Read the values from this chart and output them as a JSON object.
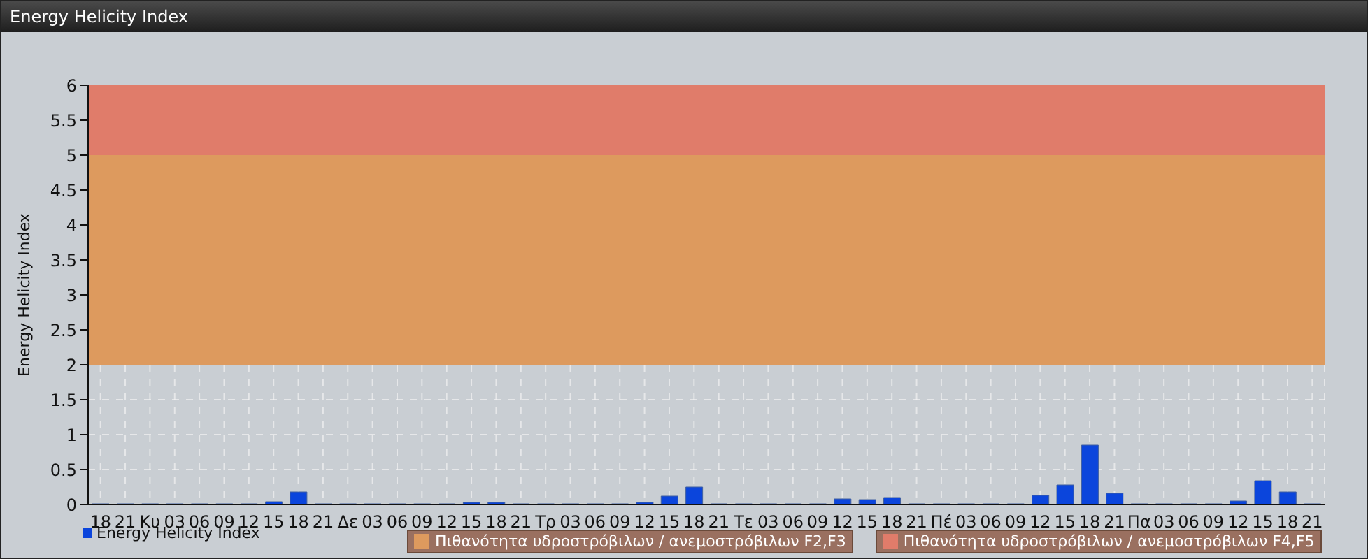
{
  "chart_data": {
    "type": "bar",
    "title": "Energy Helicity Index",
    "ylabel": "Energy Helicity Index",
    "categories": [
      "18",
      "21",
      "Κυ",
      "03",
      "06",
      "09",
      "12",
      "15",
      "18",
      "21",
      "Δε",
      "03",
      "06",
      "09",
      "12",
      "15",
      "18",
      "21",
      "Τρ",
      "03",
      "06",
      "09",
      "12",
      "15",
      "18",
      "21",
      "Τε",
      "03",
      "06",
      "09",
      "12",
      "15",
      "18",
      "21",
      "Πέ",
      "03",
      "06",
      "09",
      "12",
      "15",
      "18",
      "21",
      "Πα",
      "03",
      "06",
      "09",
      "12",
      "15",
      "18",
      "21"
    ],
    "series": [
      {
        "name": "Energy Helicity Index",
        "color": "#0b45dc",
        "values": [
          0.01,
          0.01,
          0.01,
          0.01,
          0.01,
          0.01,
          0.01,
          0.04,
          0.18,
          0.01,
          0.01,
          0.01,
          0.01,
          0.01,
          0.01,
          0.03,
          0.03,
          0.01,
          0.01,
          0.01,
          0.01,
          0.01,
          0.03,
          0.12,
          0.25,
          0.01,
          0.01,
          0.01,
          0.01,
          0.01,
          0.08,
          0.07,
          0.1,
          0.01,
          0.01,
          0.01,
          0.01,
          0.01,
          0.13,
          0.28,
          0.85,
          0.16,
          0.01,
          0.01,
          0.01,
          0.01,
          0.05,
          0.34,
          0.18,
          0.01
        ]
      }
    ],
    "ylim": [
      0,
      6
    ],
    "yticks": [
      0,
      0.5,
      1,
      1.5,
      2,
      2.5,
      3,
      3.5,
      4,
      4.5,
      5,
      5.5,
      6
    ],
    "grid": true,
    "legend": "bottom left",
    "bands": [
      {
        "axis": "y",
        "from": 2,
        "to": 5,
        "label": "Πιθανότητα υδροστρόβιλων / ανεμοστρόβιλων F2,F3",
        "color": "#dd9a5e"
      },
      {
        "axis": "y",
        "from": 5,
        "to": 6,
        "label": "Πιθανότητα υδροστρόβιλων / ανεμοστρόβιλων F4,F5",
        "color": "#e07c6a"
      }
    ]
  }
}
